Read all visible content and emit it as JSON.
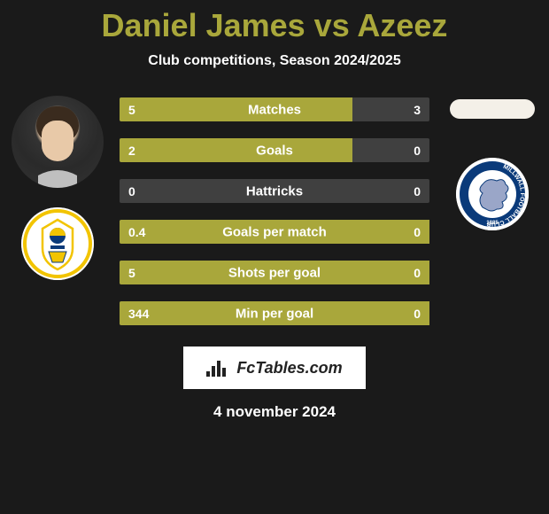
{
  "title_color": "#a9a73b",
  "title": "Daniel James vs Azeez",
  "subtitle": "Club competitions, Season 2024/2025",
  "date": "4 november 2024",
  "footer_label": "FcTables.com",
  "bar_colors": {
    "fill": "#a9a73b",
    "empty": "#404040"
  },
  "bars": [
    {
      "label": "Matches",
      "left_val": "5",
      "right_val": "3",
      "left_pct": 75,
      "right_pct": 0
    },
    {
      "label": "Goals",
      "left_val": "2",
      "right_val": "0",
      "left_pct": 75,
      "right_pct": 0
    },
    {
      "label": "Hattricks",
      "left_val": "0",
      "right_val": "0",
      "left_pct": 0,
      "right_pct": 0
    },
    {
      "label": "Goals per match",
      "left_val": "0.4",
      "right_val": "0",
      "left_pct": 100,
      "right_pct": 0
    },
    {
      "label": "Shots per goal",
      "left_val": "5",
      "right_val": "0",
      "left_pct": 100,
      "right_pct": 0
    },
    {
      "label": "Min per goal",
      "left_val": "344",
      "right_val": "0",
      "left_pct": 100,
      "right_pct": 0
    }
  ],
  "left_side": {
    "player_name": "Daniel James",
    "club_name": "Leeds United",
    "club_crest_colors": {
      "bg": "#ffffff",
      "ring": "#f2c400",
      "inner": "#0a3a7a"
    }
  },
  "right_side": {
    "player_name": "Azeez",
    "club_name": "Millwall",
    "club_crest_colors": {
      "bg": "#ffffff",
      "ring": "#0a3a7a",
      "lion": "#9aa6c8"
    }
  }
}
